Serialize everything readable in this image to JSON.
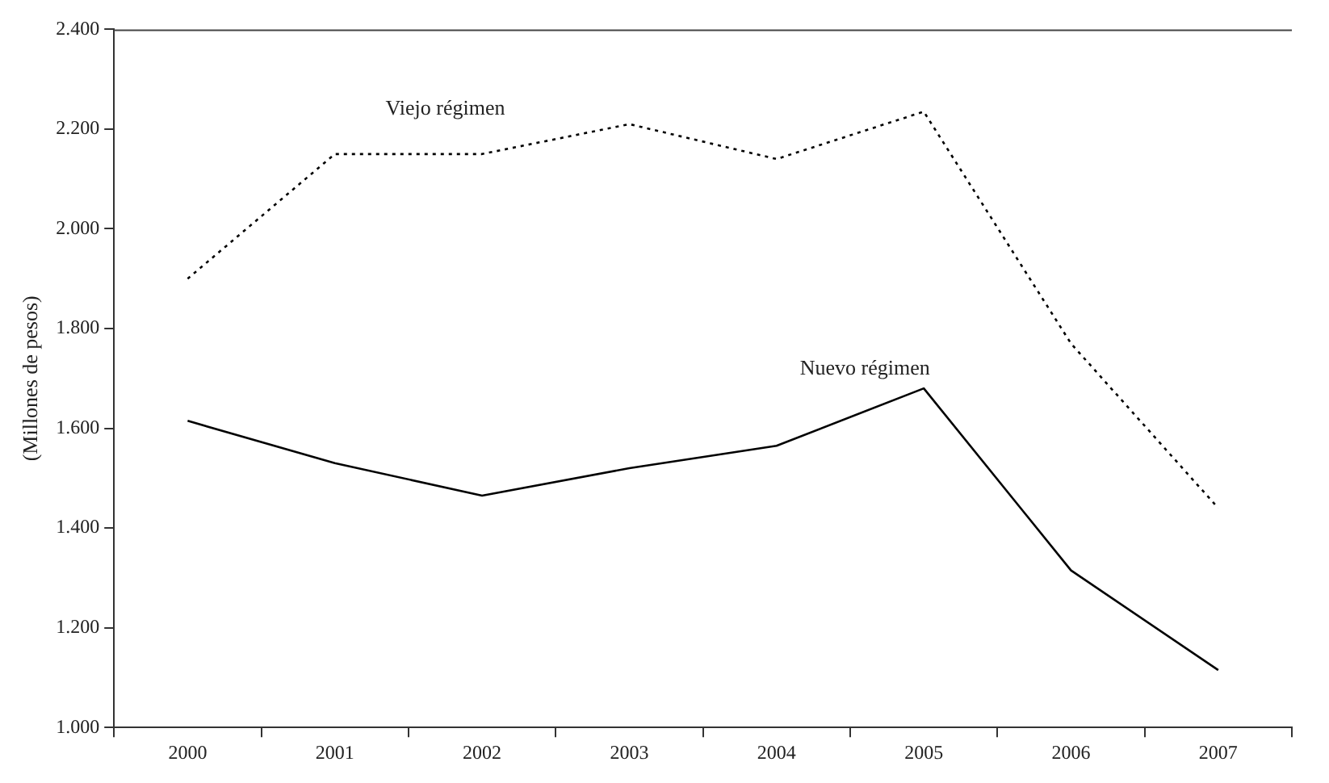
{
  "chart_data": {
    "type": "line",
    "ylabel": "(Millones de pesos)",
    "categories": [
      "2000",
      "2001",
      "2002",
      "2003",
      "2004",
      "2005",
      "2006",
      "2007"
    ],
    "series": [
      {
        "name": "Viejo régimen",
        "color": "#000000",
        "line_style": "dotted",
        "values": [
          1900,
          2150,
          2150,
          2210,
          2140,
          2235,
          1770,
          1440
        ]
      },
      {
        "name": "Nuevo régimen",
        "color": "#000000",
        "line_style": "solid",
        "values": [
          1615,
          1530,
          1465,
          1520,
          1565,
          1680,
          1315,
          1115
        ]
      }
    ],
    "ylim": [
      1000,
      2400
    ],
    "yticks": [
      {
        "value": 1000,
        "label": "1.000"
      },
      {
        "value": 1200,
        "label": "1.200"
      },
      {
        "value": 1400,
        "label": "1.400"
      },
      {
        "value": 1600,
        "label": "1.600"
      },
      {
        "value": 1800,
        "label": "1.800"
      },
      {
        "value": 2000,
        "label": "2.000"
      },
      {
        "value": 2200,
        "label": "2.200"
      },
      {
        "value": 2400,
        "label": "2.400"
      }
    ],
    "grid": false,
    "legend": false,
    "marker": "none"
  }
}
